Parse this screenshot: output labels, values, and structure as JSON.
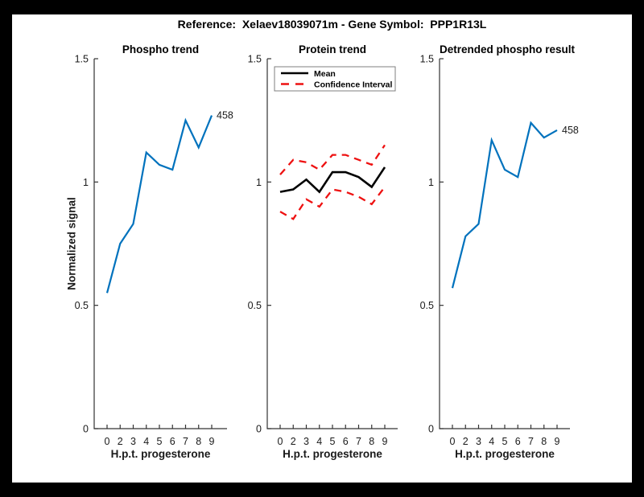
{
  "figure_title": "Reference:  Xelaev18039071m - Gene Symbol:  PPP1R13L",
  "colors": {
    "line_blue": "#0072BD",
    "ci_red": "#EE1111",
    "mean_black": "#000000",
    "axis": "#333333",
    "legend_border": "#7f7f7f"
  },
  "chart_data": [
    {
      "type": "line",
      "title": "Phospho trend",
      "xlabel": "H.p.t. progesterone",
      "ylabel": "Normalized signal",
      "x_tick_labels": [
        "0",
        "2",
        "3",
        "4",
        "5",
        "6",
        "7",
        "8",
        "9"
      ],
      "y_ticks": [
        0,
        0.5,
        1,
        1.5
      ],
      "y_tick_labels": [
        "0",
        "0.5",
        "1",
        "1.5"
      ],
      "ylim": [
        0,
        1.5
      ],
      "grid": false,
      "series": [
        {
          "name": "Phospho trend",
          "color_key": "line_blue",
          "dash": false,
          "width": 2.2,
          "values": [
            0.55,
            0.75,
            0.83,
            1.12,
            1.07,
            1.05,
            1.25,
            1.14,
            1.27
          ]
        }
      ],
      "end_label": "458",
      "legend": null
    },
    {
      "type": "line",
      "title": "Protein trend",
      "xlabel": "H.p.t. progesterone",
      "ylabel": "",
      "x_tick_labels": [
        "0",
        "2",
        "3",
        "4",
        "5",
        "6",
        "7",
        "8",
        "9"
      ],
      "y_ticks": [
        0,
        0.5,
        1,
        1.5
      ],
      "y_tick_labels": [
        "0",
        "0.5",
        "1",
        "1.5"
      ],
      "ylim": [
        0,
        1.5
      ],
      "grid": false,
      "series": [
        {
          "name": "Mean",
          "color_key": "mean_black",
          "dash": false,
          "width": 2.6,
          "values": [
            0.96,
            0.97,
            1.01,
            0.96,
            1.04,
            1.04,
            1.02,
            0.98,
            1.06
          ]
        },
        {
          "name": "Confidence Interval upper",
          "color_key": "ci_red",
          "dash": true,
          "width": 2.3,
          "values": [
            1.03,
            1.09,
            1.08,
            1.05,
            1.11,
            1.11,
            1.09,
            1.07,
            1.15
          ]
        },
        {
          "name": "Confidence Interval lower",
          "color_key": "ci_red",
          "dash": true,
          "width": 2.3,
          "values": [
            0.88,
            0.85,
            0.93,
            0.9,
            0.97,
            0.96,
            0.94,
            0.91,
            0.98
          ]
        }
      ],
      "end_label": null,
      "legend": {
        "position": "top-left",
        "entries": [
          {
            "label": "Mean",
            "color_key": "mean_black",
            "dash": false
          },
          {
            "label": "Confidence Interval",
            "color_key": "ci_red",
            "dash": true
          }
        ]
      }
    },
    {
      "type": "line",
      "title": "Detrended phospho result",
      "xlabel": "H.p.t. progesterone",
      "ylabel": "",
      "x_tick_labels": [
        "0",
        "2",
        "3",
        "4",
        "5",
        "6",
        "7",
        "8",
        "9"
      ],
      "y_ticks": [
        0,
        0.5,
        1,
        1.5
      ],
      "y_tick_labels": [
        "0",
        "0.5",
        "1",
        "1.5"
      ],
      "ylim": [
        0,
        1.5
      ],
      "grid": false,
      "series": [
        {
          "name": "Detrended phospho",
          "color_key": "line_blue",
          "dash": false,
          "width": 2.2,
          "values": [
            0.57,
            0.78,
            0.83,
            1.17,
            1.05,
            1.02,
            1.24,
            1.18,
            1.21
          ]
        }
      ],
      "end_label": "458",
      "legend": null
    }
  ]
}
